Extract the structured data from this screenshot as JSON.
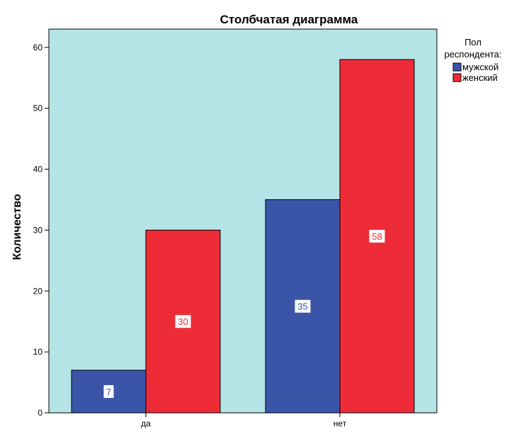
{
  "colors": {
    "plot_background": "#b5e4e6",
    "male": "#3a55a8",
    "female": "#ee2c37",
    "axis": "#000000"
  },
  "chart_data": {
    "type": "bar",
    "title": "Столбчатая диаграмма",
    "xlabel": "",
    "ylabel": "Количество",
    "categories": [
      "да",
      "нет"
    ],
    "ylim": [
      0,
      63
    ],
    "yticks": [
      0,
      10,
      20,
      30,
      40,
      50,
      60
    ],
    "grid": false,
    "legend": {
      "title_line1": "Пол",
      "title_line2": "респондента:",
      "placement": "top-right"
    },
    "series": [
      {
        "name": "мужской",
        "values": [
          7,
          35
        ],
        "color": "#3a55a8"
      },
      {
        "name": "женский",
        "values": [
          30,
          58
        ],
        "color": "#ee2c37"
      }
    ]
  }
}
